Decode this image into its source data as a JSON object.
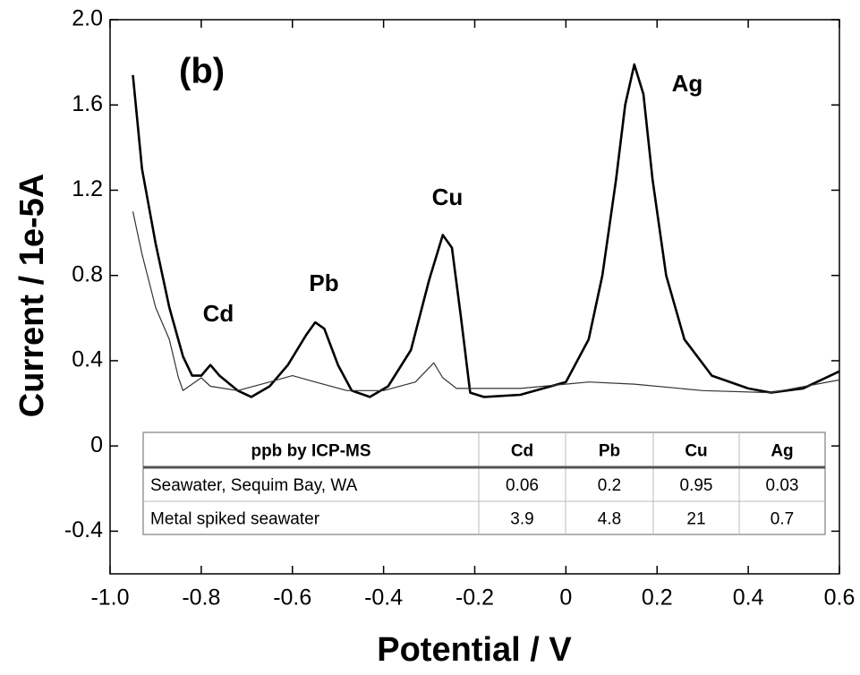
{
  "chart_data": {
    "type": "line",
    "xlabel": "Potential / V",
    "ylabel": "Current / 1e-5A",
    "annotations": [
      "(b)",
      "Cd",
      "Pb",
      "Cu",
      "Ag"
    ],
    "xlim": [
      -1.0,
      0.6
    ],
    "xticks": [
      {
        "value": -1.0,
        "label": "-1.0"
      },
      -0.8,
      -0.6,
      -0.4,
      -0.2,
      0,
      0.2,
      0.4,
      0.6
    ],
    "ylim": [
      -0.6,
      2.0
    ],
    "yticks": [
      -0.4,
      0,
      0.4,
      0.8,
      1.2,
      1.6,
      {
        "value": 2.0,
        "label": "2.0"
      }
    ],
    "series": [
      {
        "color": "#000000",
        "x": [
          -0.95,
          -0.93,
          -0.9,
          -0.87,
          -0.84,
          -0.82,
          -0.8,
          -0.78,
          -0.76,
          -0.72,
          -0.69,
          -0.65,
          -0.61,
          -0.57,
          -0.55,
          -0.53,
          -0.5,
          -0.47,
          -0.43,
          -0.39,
          -0.34,
          -0.3,
          -0.27,
          -0.25,
          -0.23,
          -0.21,
          -0.18,
          -0.1,
          0.0,
          0.05,
          0.08,
          0.11,
          0.13,
          0.15,
          0.17,
          0.19,
          0.22,
          0.26,
          0.32,
          0.4,
          0.45,
          0.52,
          0.6
        ],
        "values": [
          1.74,
          1.3,
          0.95,
          0.65,
          0.42,
          0.33,
          0.33,
          0.38,
          0.33,
          0.26,
          0.23,
          0.28,
          0.38,
          0.52,
          0.58,
          0.55,
          0.38,
          0.26,
          0.23,
          0.28,
          0.45,
          0.78,
          0.99,
          0.93,
          0.6,
          0.25,
          0.23,
          0.24,
          0.3,
          0.5,
          0.8,
          1.25,
          1.6,
          1.79,
          1.65,
          1.25,
          0.8,
          0.5,
          0.33,
          0.27,
          0.25,
          0.27,
          0.35
        ]
      },
      {
        "color": "#333333",
        "x": [
          -0.95,
          -0.93,
          -0.9,
          -0.87,
          -0.85,
          -0.84,
          -0.8,
          -0.78,
          -0.72,
          -0.65,
          -0.6,
          -0.55,
          -0.48,
          -0.4,
          -0.33,
          -0.29,
          -0.27,
          -0.24,
          -0.1,
          0.05,
          0.15,
          0.3,
          0.45,
          0.6
        ],
        "values": [
          1.1,
          0.9,
          0.65,
          0.5,
          0.32,
          0.26,
          0.32,
          0.28,
          0.26,
          0.3,
          0.33,
          0.3,
          0.26,
          0.26,
          0.3,
          0.39,
          0.32,
          0.27,
          0.27,
          0.3,
          0.29,
          0.26,
          0.25,
          0.31
        ]
      }
    ],
    "table": {
      "header": [
        "ppb by ICP-MS",
        "Cd",
        "Pb",
        "Cu",
        "Ag"
      ],
      "rows": [
        [
          "Seawater, Sequim Bay, WA",
          "0.06",
          "0.2",
          "0.95",
          "0.03"
        ],
        [
          "Metal spiked seawater",
          "3.9",
          "4.8",
          "21",
          "0.7"
        ]
      ]
    }
  }
}
